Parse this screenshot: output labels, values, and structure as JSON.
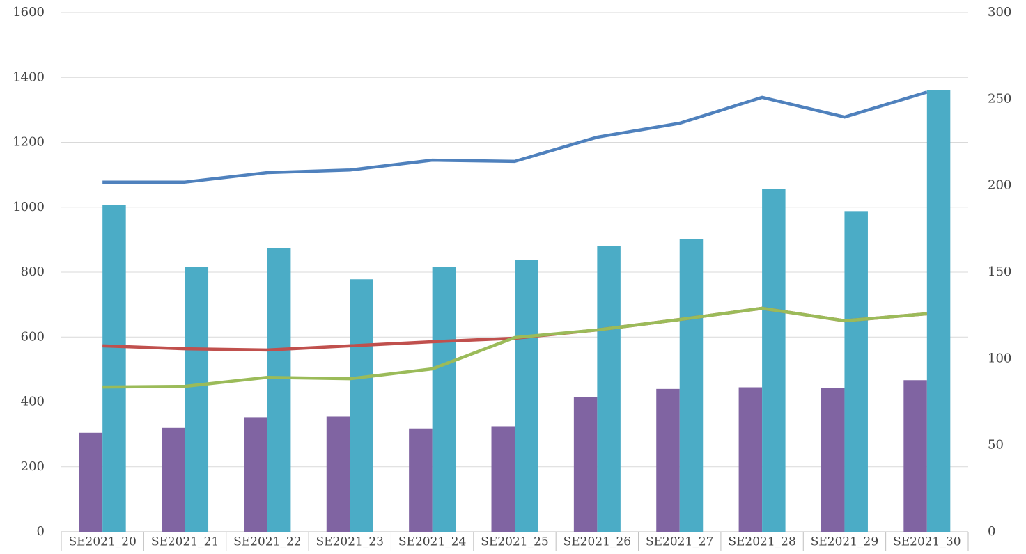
{
  "chart_data": {
    "type": "bar-line",
    "categories": [
      "SE2021_20",
      "SE2021_21",
      "SE2021_22",
      "SE2021_23",
      "SE2021_24",
      "SE2021_25",
      "SE2021_26",
      "SE2021_27",
      "SE2021_28",
      "SE2021_29",
      "SE2021_30"
    ],
    "series": [
      {
        "kind": "bar",
        "color": "#8064a2",
        "values": [
          305,
          320,
          353,
          355,
          318,
          325,
          415,
          440,
          445,
          442,
          467
        ]
      },
      {
        "kind": "bar",
        "color": "#4bacc6",
        "values": [
          1008,
          816,
          874,
          778,
          816,
          838,
          880,
          902,
          1056,
          988,
          1360
        ]
      },
      {
        "kind": "line",
        "axis": "y2",
        "color": "#4f81bd",
        "values": [
          202,
          202,
          207.5,
          209,
          214.7,
          214,
          228,
          236,
          251,
          239.6,
          254
        ]
      },
      {
        "kind": "line",
        "axis": "y2",
        "color": "#c0504d",
        "values": [
          107.4,
          105.7,
          105,
          107.4,
          109.8,
          111.8,
          116.6,
          122.6,
          129.1,
          121.9,
          125.9
        ]
      },
      {
        "kind": "line",
        "axis": "y2",
        "color": "#9bbb59",
        "values": [
          83.6,
          84,
          89.2,
          88.4,
          94.1,
          112.2,
          116.6,
          122.6,
          129.1,
          121.9,
          125.9
        ]
      }
    ],
    "ylim": [
      0,
      1600
    ],
    "yticks": [
      0,
      200,
      400,
      600,
      800,
      1000,
      1200,
      1400,
      1600
    ],
    "y2lim": [
      0,
      300
    ],
    "y2ticks": [
      0,
      50,
      100,
      150,
      200,
      250,
      300
    ],
    "grid": true
  }
}
